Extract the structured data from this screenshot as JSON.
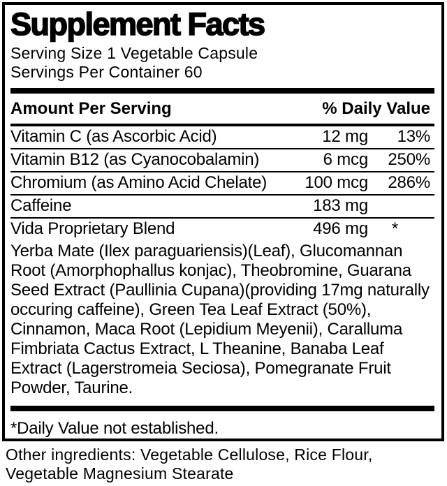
{
  "panel": {
    "title": "Supplement Facts",
    "serving_size": "Serving Size 1 Vegetable Capsule",
    "servings_per_container": "Servings Per Container 60",
    "header": {
      "amount_col": "Amount Per Serving",
      "dv_col": "% Daily Value"
    },
    "rows": [
      {
        "name": "Vitamin C (as Ascorbic Acid)",
        "amount": "12 mg",
        "dv": "13%"
      },
      {
        "name": "Vitamin B12 (as Cyanocobalamin)",
        "amount": "6 mcg",
        "dv": "250%"
      },
      {
        "name": "Chromium (as Amino Acid Chelate)",
        "amount": "100 mcg",
        "dv": "286%"
      },
      {
        "name": "Caffeine",
        "amount": "183 mg",
        "dv": ""
      },
      {
        "name": "Vida Proprietary Blend",
        "amount": "496 mg",
        "dv": "*"
      }
    ],
    "blend_description": "Yerba Mate (Ilex paraguariensis)(Leaf), Glucomannan Root (Amorphophallus konjac), Theobromine, Guarana Seed Extract (Paullinia Cupana)(providing 17mg naturally occuring caffeine), Green Tea Leaf Extract (50%), Cinnamon, Maca Root (Lepidium Meyenii), Caralluma Fimbriata Cactus Extract, L Theanine, Banaba Leaf Extract (Lagerstromeia Seciosa), Pomegranate Fruit Powder, Taurine.",
    "footnote": "*Daily Value not established."
  },
  "other_ingredients": "Other ingredients: Vegetable Cellulose, Rice Flour, Vegetable Magnesium Stearate",
  "colors": {
    "text": "#000000",
    "background": "#ffffff"
  }
}
